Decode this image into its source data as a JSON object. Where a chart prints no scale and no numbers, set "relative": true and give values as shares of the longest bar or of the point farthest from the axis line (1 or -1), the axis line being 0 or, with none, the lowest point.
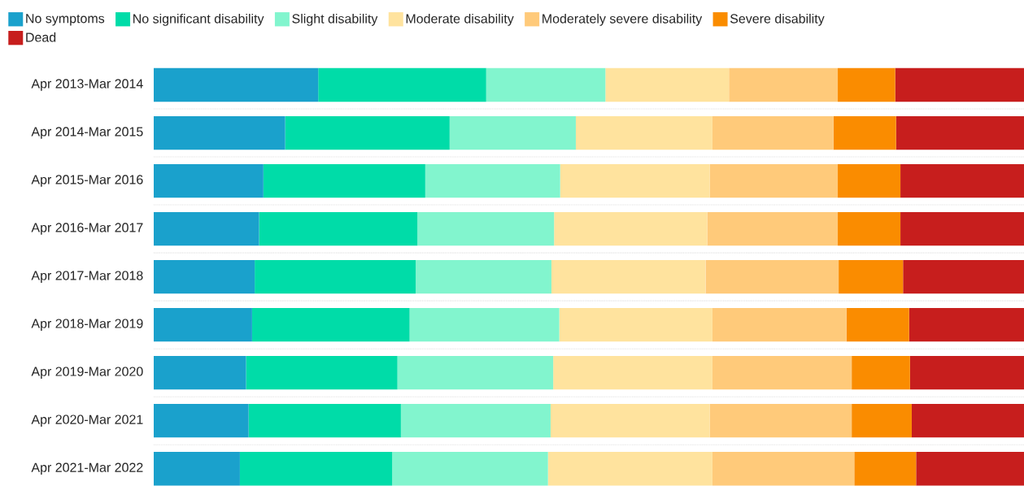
{
  "chart_data": {
    "type": "bar",
    "orientation": "horizontal",
    "stacked": true,
    "relative": true,
    "grid": "y",
    "legend": "top",
    "categories": [
      "Apr 2013-Mar 2014",
      "Apr 2014-Mar 2015",
      "Apr 2015-Mar 2016",
      "Apr 2016-Mar 2017",
      "Apr 2017-Mar 2018",
      "Apr 2018-Mar 2019",
      "Apr 2019-Mar 2020",
      "Apr 2020-Mar 2021",
      "Apr 2021-Mar 2022"
    ],
    "series": [
      {
        "name": "No symptoms",
        "color": "#1aa1cc",
        "values": [
          0.189,
          0.151,
          0.126,
          0.121,
          0.116,
          0.113,
          0.106,
          0.109,
          0.099
        ]
      },
      {
        "name": "No significant disability",
        "color": "#00dca8",
        "values": [
          0.193,
          0.189,
          0.186,
          0.182,
          0.185,
          0.181,
          0.174,
          0.175,
          0.175
        ]
      },
      {
        "name": "Slight disability",
        "color": "#82f5ce",
        "values": [
          0.137,
          0.145,
          0.155,
          0.157,
          0.156,
          0.172,
          0.179,
          0.172,
          0.179
        ]
      },
      {
        "name": "Moderate disability",
        "color": "#ffe39e",
        "values": [
          0.142,
          0.157,
          0.172,
          0.176,
          0.177,
          0.176,
          0.183,
          0.183,
          0.189
        ]
      },
      {
        "name": "Moderately severe disability",
        "color": "#ffca7a",
        "values": [
          0.125,
          0.139,
          0.147,
          0.15,
          0.153,
          0.154,
          0.16,
          0.163,
          0.163
        ]
      },
      {
        "name": "Severe disability",
        "color": "#fa8c00",
        "values": [
          0.066,
          0.072,
          0.072,
          0.072,
          0.074,
          0.072,
          0.067,
          0.069,
          0.071
        ]
      },
      {
        "name": "Dead",
        "color": "#c71e1d",
        "values": [
          0.148,
          0.147,
          0.142,
          0.142,
          0.139,
          0.132,
          0.131,
          0.129,
          0.124
        ]
      }
    ]
  }
}
